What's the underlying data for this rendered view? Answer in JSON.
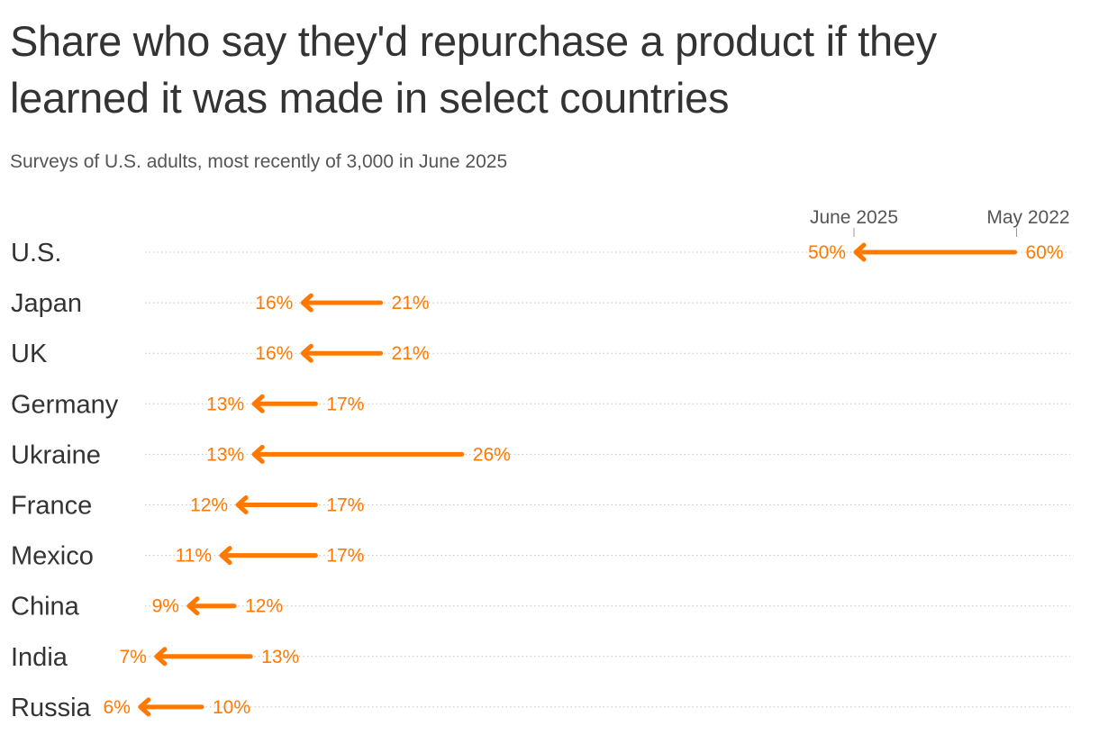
{
  "chart_data": {
    "type": "arrow",
    "title": "Share who say they'd repurchase a product if they learned it was made in select countries",
    "subtitle": "Surveys of U.S. adults, most recently of 3,000 in June 2025",
    "series": [
      {
        "name": "May 2022",
        "values": [
          60,
          21,
          21,
          17,
          26,
          17,
          17,
          12,
          13,
          10
        ]
      },
      {
        "name": "June 2025",
        "values": [
          50,
          16,
          16,
          13,
          13,
          12,
          11,
          9,
          7,
          6
        ]
      }
    ],
    "categories": [
      "U.S.",
      "Japan",
      "UK",
      "Germany",
      "Ukraine",
      "France",
      "Mexico",
      "China",
      "India",
      "Russia"
    ],
    "value_suffix": "%",
    "xlim": [
      0,
      60
    ],
    "grid": "dotted-horizontal",
    "legend": "top-right",
    "color": "#ff7900"
  }
}
